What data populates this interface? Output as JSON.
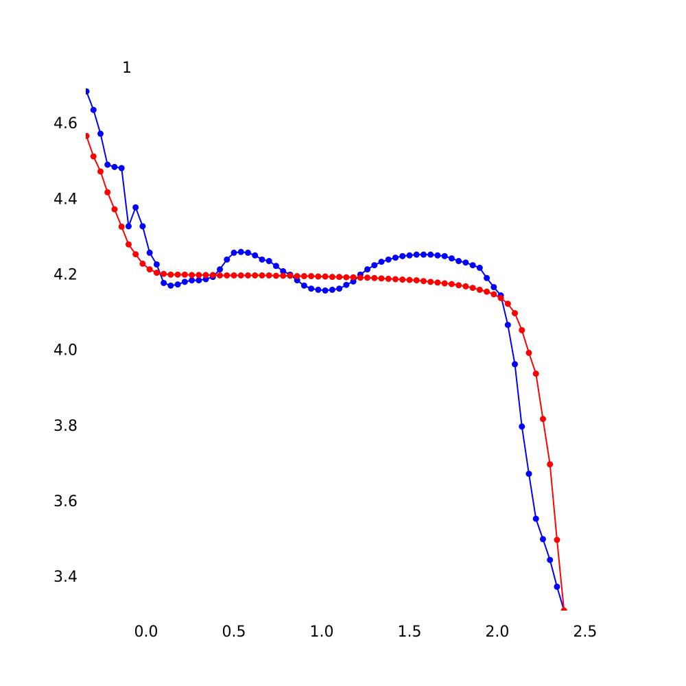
{
  "chart_data": {
    "type": "line",
    "annotation": "1",
    "x": [
      -0.34,
      -0.3,
      -0.26,
      -0.22,
      -0.18,
      -0.14,
      -0.1,
      -0.06,
      -0.02,
      0.02,
      0.06,
      0.1,
      0.14,
      0.18,
      0.22,
      0.26,
      0.3,
      0.34,
      0.38,
      0.42,
      0.46,
      0.5,
      0.54,
      0.58,
      0.62,
      0.66,
      0.7,
      0.74,
      0.78,
      0.82,
      0.86,
      0.9,
      0.94,
      0.98,
      1.02,
      1.06,
      1.1,
      1.14,
      1.18,
      1.22,
      1.26,
      1.3,
      1.34,
      1.38,
      1.42,
      1.46,
      1.5,
      1.54,
      1.58,
      1.62,
      1.66,
      1.7,
      1.74,
      1.78,
      1.82,
      1.86,
      1.9,
      1.94,
      1.98,
      2.02,
      2.06,
      2.1,
      2.14,
      2.18,
      2.22,
      2.26,
      2.3,
      2.34,
      2.38
    ],
    "series": [
      {
        "color": "#0000ff",
        "values": [
          4.687,
          4.638,
          4.575,
          4.493,
          4.487,
          4.484,
          4.33,
          4.38,
          4.33,
          4.26,
          4.229,
          4.18,
          4.173,
          4.176,
          4.183,
          4.187,
          4.187,
          4.19,
          4.196,
          4.216,
          4.242,
          4.26,
          4.262,
          4.26,
          4.253,
          4.242,
          4.238,
          4.225,
          4.211,
          4.202,
          4.187,
          4.173,
          4.165,
          4.162,
          4.16,
          4.162,
          4.165,
          4.175,
          4.184,
          4.202,
          4.216,
          4.227,
          4.236,
          4.242,
          4.247,
          4.251,
          4.253,
          4.255,
          4.255,
          4.255,
          4.253,
          4.251,
          4.245,
          4.238,
          4.234,
          4.227,
          4.22,
          4.193,
          4.169,
          4.147,
          4.069,
          3.965,
          3.8,
          3.675,
          3.556,
          3.502,
          3.447,
          3.376,
          3.313
        ]
      },
      {
        "color": "#ff0000",
        "values": [
          4.569,
          4.515,
          4.475,
          4.42,
          4.375,
          4.329,
          4.282,
          4.256,
          4.231,
          4.216,
          4.207,
          4.204,
          4.202,
          4.202,
          4.202,
          4.201,
          4.201,
          4.201,
          4.201,
          4.2,
          4.2,
          4.2,
          4.2,
          4.2,
          4.2,
          4.2,
          4.2,
          4.199,
          4.199,
          4.199,
          4.198,
          4.198,
          4.198,
          4.197,
          4.197,
          4.196,
          4.196,
          4.195,
          4.195,
          4.194,
          4.194,
          4.193,
          4.192,
          4.191,
          4.19,
          4.189,
          4.188,
          4.187,
          4.185,
          4.183,
          4.181,
          4.179,
          4.177,
          4.174,
          4.171,
          4.167,
          4.162,
          4.157,
          4.15,
          4.14,
          4.125,
          4.1,
          4.055,
          3.995,
          3.94,
          3.82,
          3.7,
          3.5,
          3.313
        ]
      }
    ],
    "xlim": [
      -0.344,
      2.684
    ],
    "ylim": [
      3.313,
      4.711
    ],
    "xticks": [
      {
        "value": 0,
        "label": "0.0"
      },
      0.5,
      {
        "value": 1,
        "label": "1.0"
      },
      1.5,
      {
        "value": 2,
        "label": "2.0"
      },
      2.5
    ],
    "yticks": [
      3.4,
      3.6,
      3.8,
      {
        "value": 4,
        "label": "4.0"
      },
      4.2,
      4.4,
      4.6
    ],
    "grid": false
  }
}
